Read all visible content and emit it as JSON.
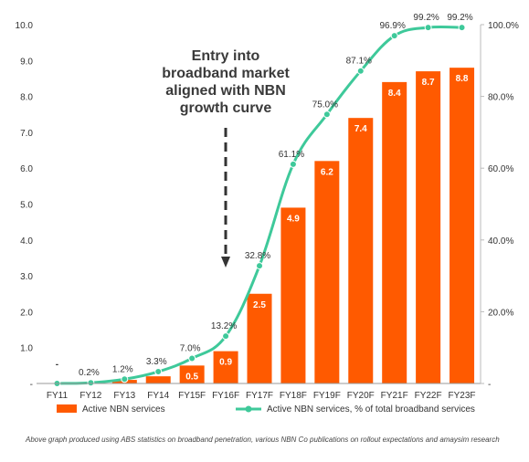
{
  "chart_data": {
    "type": "bar",
    "categories": [
      "FY11",
      "FY12",
      "FY13",
      "FY14",
      "FY15F",
      "FY16F",
      "FY17F",
      "FY18F",
      "FY19F",
      "FY20F",
      "FY21F",
      "FY22F",
      "FY23F"
    ],
    "series": [
      {
        "name": "Active NBN services",
        "axis": "left",
        "type": "bar",
        "color": "#ff5a00",
        "values": [
          0.0,
          0.02,
          0.1,
          0.2,
          0.5,
          0.9,
          2.5,
          4.9,
          6.2,
          7.4,
          8.4,
          8.7,
          8.8
        ],
        "labels": [
          "-",
          "",
          "",
          "",
          "0.5",
          "0.9",
          "2.5",
          "4.9",
          "6.2",
          "7.4",
          "8.4",
          "8.7",
          "8.8"
        ]
      },
      {
        "name": "Active NBN services, % of total broadband services",
        "axis": "right",
        "type": "line",
        "color": "#3ec99a",
        "values": [
          0.0,
          0.2,
          1.2,
          3.3,
          7.0,
          13.2,
          32.8,
          61.1,
          75.0,
          87.1,
          96.9,
          99.2,
          99.2
        ],
        "labels": [
          "",
          "0.2%",
          "1.2%",
          "3.3%",
          "7.0%",
          "13.2%",
          "32.8%",
          "61.1%",
          "75.0%",
          "87.1%",
          "96.9%",
          "99.2%",
          "99.2%"
        ]
      }
    ],
    "y_left": {
      "ylim": [
        0,
        10
      ],
      "ticks": [
        0,
        1,
        2,
        3,
        4,
        5,
        6,
        7,
        8,
        9,
        10
      ],
      "tick_labels": [
        "-",
        "1.0",
        "2.0",
        "3.0",
        "4.0",
        "5.0",
        "6.0",
        "7.0",
        "8.0",
        "9.0",
        "10.0"
      ]
    },
    "y_right": {
      "ylim": [
        0,
        100
      ],
      "ticks": [
        0,
        20,
        40,
        60,
        80,
        100
      ],
      "tick_labels": [
        "-",
        "20.0%",
        "40.0%",
        "60.0%",
        "80.0%",
        "100.0%"
      ]
    },
    "annotation": {
      "lines": [
        "Entry into",
        "broadband market",
        "aligned with NBN",
        "growth curve"
      ],
      "arrow_target": "FY16F"
    },
    "legend_position": "bottom",
    "grid": false,
    "title": "",
    "xlabel": "",
    "ylabel": ""
  },
  "footer": {
    "source_note": "Above graph produced using ABS statistics on broadband penetration, various NBN Co publications on rollout expectations and amaysim research"
  }
}
